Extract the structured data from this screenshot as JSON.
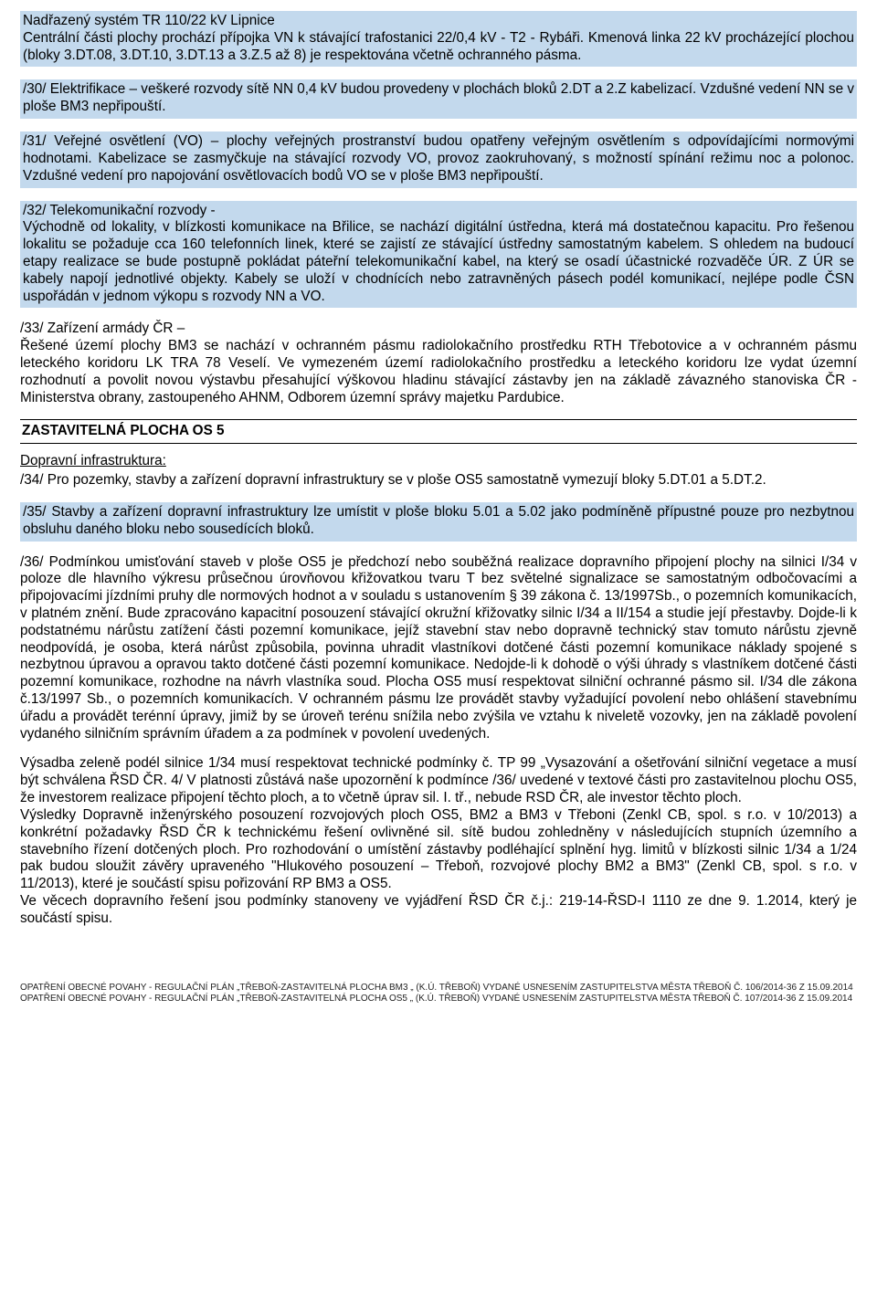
{
  "colors": {
    "highlight_bg": "#c3d9ed",
    "page_bg": "#ffffff",
    "text": "#000000",
    "border": "#000000"
  },
  "typography": {
    "body_fontsize_pt": 11.5,
    "footer_fontsize_pt": 7.5,
    "title_weight": "bold",
    "font_family": "Arial"
  },
  "p29": "Nadřazený systém TR 110/22 kV Lipnice\nCentrální části plochy prochází přípojka VN k stávající trafostanici 22/0,4 kV - T2 - Rybáři. Kmenová linka 22 kV procházející plochou (bloky 3.DT.08, 3.DT.10, 3.DT.13 a 3.Z.5 až 8) je respektována včetně ochranného pásma.",
  "p30": "/30/ Elektrifikace – veškeré rozvody sítě NN 0,4 kV budou provedeny v plochách bloků 2.DT a 2.Z kabelizací. Vzdušné vedení NN se v ploše BM3 nepřipouští.",
  "p31": "/31/ Veřejné osvětlení (VO) – plochy veřejných prostranství budou opatřeny veřejným osvětlením s odpovídajícími normovými hodnotami. Kabelizace se zasmyčkuje na stávající rozvody VO, provoz zaokruhovaný, s možností spínání režimu noc a polonoc. Vzdušné vedení pro napojování osvětlovacích bodů VO se v ploše BM3 nepřipouští.",
  "p32": "/32/ Telekomunikační rozvody -\nVýchodně od lokality, v blízkosti komunikace na Břilice, se nachází digitální ústředna, která má dostatečnou kapacitu. Pro řešenou lokalitu se požaduje cca 160 telefonních linek, které se zajistí ze stávající ústředny samostatným kabelem. S ohledem na budoucí etapy realizace se bude postupně pokládat páteřní telekomunikační kabel, na který se osadí účastnické rozvaděče ÚR. Z ÚR se kabely napojí jednotlivé objekty. Kabely se uloží v chodnících nebo zatravněných pásech podél komunikací, nejlépe podle ČSN uspořádán v jednom výkopu s rozvody NN a VO.",
  "p33": "/33/ Zařízení armády ČR –\nŘešené území plochy BM3 se nachází v ochranném pásmu radiolokačního prostředku RTH Třebotovice a v ochranném pásmu leteckého koridoru LK TRA 78 Veselí. Ve vymezeném území radiolokačního prostředku a leteckého koridoru lze vydat územní rozhodnutí a povolit novou výstavbu přesahující výškovou hladinu stávající zástavby jen na základě závazného stanoviska ČR - Ministerstva obrany, zastoupeného AHNM, Odborem územní správy majetku Pardubice.",
  "sectionTitle": "ZASTAVITELNÁ PLOCHA OS 5",
  "diTitle": "Dopravní infrastruktura:",
  "p34": "/34/ Pro pozemky, stavby a zařízení dopravní infrastruktury se v ploše OS5 samostatně vymezují bloky 5.DT.01 a 5.DT.2.",
  "p35": "/35/ Stavby a zařízení dopravní infrastruktury lze umístit v ploše bloku 5.01 a 5.02 jako podmíněně přípustné pouze pro nezbytnou obsluhu daného bloku nebo sousedících bloků.",
  "p36": "/36/ Podmínkou umisťování staveb v ploše OS5 je předchozí nebo souběžná realizace dopravního připojení plochy na silnici I/34 v poloze dle hlavního výkresu průsečnou úrovňovou křižovatkou tvaru T bez světelné signalizace se samostatným odbočovacími a připojovacími jízdními pruhy dle normových hodnot a v souladu s ustanovením § 39 zákona č. 13/1997Sb., o pozemních komunikacích, v platném znění. Bude zpracováno kapacitní posouzení stávající okružní křižovatky silnic I/34 a II/154 a studie její přestavby. Dojde-li k podstatnému nárůstu zatížení části pozemní komunikace, jejíž stavební stav nebo dopravně technický stav tomuto nárůstu zjevně neodpovídá, je osoba, která nárůst způsobila, povinna uhradit vlastníkovi dotčené části pozemní komunikace náklady spojené s nezbytnou úpravou a opravou takto dotčené části pozemní komunikace. Nedojde-li k dohodě o výši úhrady s vlastníkem dotčené části pozemní komunikace, rozhodne na návrh vlastníka soud.  Plocha OS5 musí respektovat silniční ochranné pásmo sil. I/34 dle zákona č.13/1997 Sb., o pozemních komunikacích. V ochranném pásmu lze provádět stavby vyžadující povolení nebo ohlášení stavebnímu úřadu a provádět terénní úpravy, jimiž by se úroveň terénu snížila nebo zvýšila ve vztahu k niveletě vozovky, jen na základě povolení vydaného silničním správním úřadem a za podmínek v povolení uvedených.",
  "p37": " Výsadba zeleně podél silnice 1/34 musí respektovat technické podmínky č. TP 99 „Vysazování a ošetřování silniční vegetace a musí být schválena ŘSD ČR. 4/ V platnosti zůstává naše upozornění k podmínce /36/ uvedené v textové části pro zastavitelnou plochu OS5, že investorem realizace připojení těchto ploch, a to včetně úprav sil. I. tř., nebude RSD ČR, ale investor těchto ploch.\nVýsledky Dopravně inženýrského posouzení rozvojových ploch OS5, BM2 a BM3 v Třeboni (Zenkl CB, spol. s r.o. v 10/2013) a konkrétní požadavky ŘSD ČR k technickému řešení ovlivněné sil. sítě budou zohledněny v následujících stupních územního a stavebního řízení dotčených ploch. Pro rozhodování o umístění zástavby podléhající splnění hyg. limitů v blízkosti silnic 1/34 a 1/24 pak budou sloužit závěry upraveného \"Hlukového posouzení – Třeboň, rozvojové plochy BM2 a BM3\" (Zenkl CB, spol. s r.o. v 11/2013), které je součástí spisu pořizování RP BM3 a OS5.\nVe věcech dopravního řešení jsou podmínky stanoveny ve vyjádření ŘSD ČR č.j.: 219-14-ŘSD-I 1110 ze dne 9. 1.2014, který je součástí spisu.",
  "footerLine1": "OPATŘENÍ OBECNÉ POVAHY - REGULAČNÍ PLÁN „TŘEBOŇ-ZASTAVITELNÁ PLOCHA BM3 „ (K.Ú. TŘEBOŇ) VYDANÉ USNESENÍM ZASTUPITELSTVA MĚSTA TŘEBOŇ Č. 106/2014-36 Z 15.09.2014",
  "footerLine2": "OPATŘENÍ OBECNÉ POVAHY - REGULAČNÍ PLÁN „TŘEBOŇ-ZASTAVITELNÁ PLOCHA OS5 „ (K.Ú. TŘEBOŇ) VYDANÉ USNESENÍM ZASTUPITELSTVA MĚSTA TŘEBOŇ Č. 107/2014-36 Z 15.09.2014"
}
